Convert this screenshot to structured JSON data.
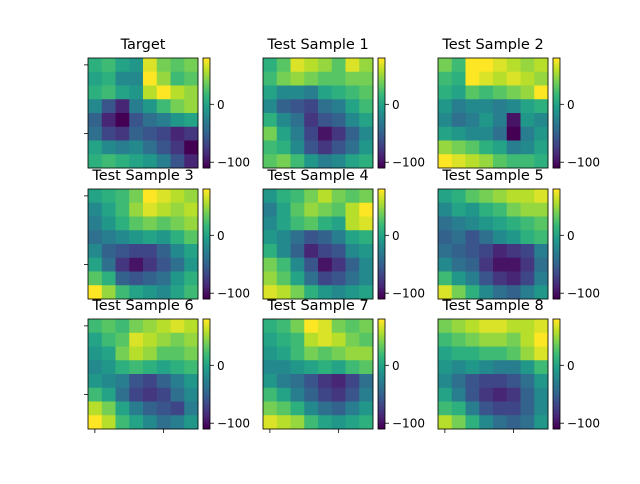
{
  "chart_data": {
    "type": "heatmap",
    "colormap": "viridis",
    "grid_size": 8,
    "colorbar": {
      "vmin": -110,
      "vmax": 80,
      "ticks": [
        {
          "value": 0,
          "label": "0"
        },
        {
          "value": -100,
          "label": "−100"
        }
      ]
    },
    "panels": [
      {
        "title": "Target",
        "z": [
          [
            10,
            20,
            0,
            -10,
            70,
            40,
            30,
            40
          ],
          [
            0,
            10,
            -20,
            -20,
            80,
            50,
            20,
            30
          ],
          [
            10,
            20,
            0,
            -10,
            60,
            80,
            60,
            50
          ],
          [
            -20,
            -60,
            -90,
            -30,
            -10,
            20,
            40,
            50
          ],
          [
            -50,
            -90,
            -110,
            -60,
            -40,
            -30,
            -10,
            0
          ],
          [
            -40,
            -70,
            -80,
            -50,
            -60,
            -70,
            -90,
            -80
          ],
          [
            0,
            -20,
            -30,
            -20,
            -40,
            -60,
            -80,
            -110
          ],
          [
            10,
            20,
            10,
            0,
            -10,
            -30,
            -60,
            -90
          ]
        ]
      },
      {
        "title": "Test Sample 1",
        "z": [
          [
            10,
            30,
            70,
            60,
            50,
            30,
            70,
            50
          ],
          [
            20,
            40,
            50,
            40,
            30,
            30,
            40,
            40
          ],
          [
            0,
            -20,
            -20,
            -30,
            0,
            10,
            20,
            30
          ],
          [
            -20,
            -50,
            -60,
            -70,
            -40,
            -30,
            0,
            20
          ],
          [
            10,
            -20,
            -40,
            -80,
            -60,
            -50,
            -20,
            0
          ],
          [
            40,
            0,
            -30,
            -70,
            -100,
            -80,
            -50,
            -20
          ],
          [
            20,
            10,
            -20,
            -60,
            -80,
            -60,
            -40,
            -10
          ],
          [
            30,
            40,
            20,
            -10,
            -30,
            -20,
            0,
            10
          ]
        ]
      },
      {
        "title": "Test Sample 2",
        "z": [
          [
            40,
            20,
            80,
            80,
            70,
            60,
            50,
            60
          ],
          [
            20,
            10,
            80,
            70,
            60,
            70,
            60,
            50
          ],
          [
            10,
            0,
            30,
            20,
            30,
            40,
            50,
            80
          ],
          [
            -10,
            -30,
            -20,
            -20,
            -30,
            -20,
            0,
            10
          ],
          [
            -20,
            -40,
            -30,
            -10,
            -30,
            -100,
            -10,
            -20
          ],
          [
            0,
            -10,
            -20,
            -20,
            -40,
            -110,
            -30,
            -10
          ],
          [
            50,
            40,
            30,
            10,
            0,
            -30,
            -20,
            0
          ],
          [
            80,
            70,
            60,
            50,
            30,
            20,
            20,
            10
          ]
        ]
      },
      {
        "title": "Test Sample 3",
        "z": [
          [
            0,
            10,
            20,
            40,
            80,
            70,
            60,
            50
          ],
          [
            -20,
            0,
            20,
            50,
            70,
            60,
            50,
            60
          ],
          [
            -30,
            -10,
            10,
            30,
            40,
            30,
            40,
            50
          ],
          [
            -40,
            -30,
            -20,
            -10,
            0,
            -10,
            10,
            30
          ],
          [
            -20,
            -50,
            -60,
            -70,
            -70,
            -50,
            -20,
            0
          ],
          [
            0,
            -40,
            -80,
            -100,
            -80,
            -60,
            -40,
            -10
          ],
          [
            30,
            10,
            -50,
            -60,
            -50,
            -40,
            -10,
            10
          ],
          [
            80,
            50,
            20,
            0,
            -10,
            -20,
            0,
            20
          ]
        ]
      },
      {
        "title": "Test Sample 4",
        "z": [
          [
            -10,
            10,
            20,
            40,
            60,
            40,
            30,
            40
          ],
          [
            -30,
            0,
            30,
            50,
            40,
            30,
            60,
            80
          ],
          [
            -20,
            0,
            20,
            30,
            10,
            0,
            60,
            70
          ],
          [
            -10,
            -20,
            -40,
            -60,
            -50,
            -30,
            0,
            10
          ],
          [
            10,
            -20,
            -50,
            -90,
            -70,
            -60,
            -20,
            -10
          ],
          [
            40,
            20,
            -20,
            -60,
            -100,
            -80,
            -50,
            -20
          ],
          [
            50,
            30,
            0,
            -40,
            -70,
            -60,
            -40,
            -20
          ],
          [
            70,
            60,
            40,
            10,
            -10,
            -20,
            -10,
            0
          ]
        ]
      },
      {
        "title": "Test Sample 5",
        "z": [
          [
            0,
            10,
            30,
            40,
            50,
            60,
            60,
            70
          ],
          [
            -20,
            0,
            -10,
            10,
            20,
            40,
            50,
            50
          ],
          [
            -40,
            -30,
            -20,
            -10,
            0,
            10,
            20,
            30
          ],
          [
            -50,
            -40,
            -60,
            -40,
            -20,
            -10,
            10,
            20
          ],
          [
            -40,
            -50,
            -60,
            -70,
            -90,
            -80,
            -70,
            -30
          ],
          [
            -20,
            -40,
            -50,
            -80,
            -100,
            -100,
            -80,
            -40
          ],
          [
            20,
            -10,
            -30,
            -60,
            -80,
            -90,
            -70,
            -30
          ],
          [
            70,
            40,
            10,
            -20,
            -40,
            -50,
            -30,
            -10
          ]
        ]
      },
      {
        "title": "Test Sample 6",
        "z": [
          [
            20,
            30,
            20,
            40,
            50,
            60,
            70,
            60
          ],
          [
            0,
            20,
            30,
            70,
            60,
            50,
            40,
            50
          ],
          [
            -10,
            0,
            40,
            60,
            50,
            30,
            30,
            40
          ],
          [
            -20,
            -10,
            10,
            20,
            10,
            0,
            10,
            20
          ],
          [
            -10,
            -20,
            -30,
            -60,
            -70,
            -50,
            -30,
            -10
          ],
          [
            20,
            0,
            -40,
            -70,
            -80,
            -70,
            -40,
            -20
          ],
          [
            60,
            40,
            0,
            -30,
            -50,
            -60,
            -70,
            -30
          ],
          [
            80,
            60,
            20,
            0,
            -20,
            -40,
            -30,
            -10
          ]
        ]
      },
      {
        "title": "Test Sample 7",
        "z": [
          [
            10,
            20,
            40,
            80,
            70,
            40,
            30,
            40
          ],
          [
            0,
            10,
            20,
            60,
            70,
            60,
            40,
            30
          ],
          [
            -10,
            0,
            20,
            40,
            30,
            40,
            50,
            50
          ],
          [
            -20,
            -20,
            -10,
            0,
            10,
            0,
            20,
            30
          ],
          [
            -10,
            -30,
            -40,
            -60,
            -80,
            -90,
            -70,
            -40
          ],
          [
            20,
            0,
            -30,
            -50,
            -70,
            -80,
            -60,
            -30
          ],
          [
            40,
            30,
            10,
            -20,
            -40,
            -50,
            -30,
            -10
          ],
          [
            70,
            60,
            50,
            20,
            0,
            -10,
            0,
            10
          ]
        ]
      },
      {
        "title": "Test Sample 8",
        "z": [
          [
            40,
            50,
            60,
            70,
            70,
            60,
            60,
            70
          ],
          [
            20,
            30,
            40,
            50,
            50,
            40,
            60,
            80
          ],
          [
            0,
            10,
            10,
            20,
            20,
            30,
            50,
            70
          ],
          [
            -10,
            -20,
            -10,
            -20,
            -30,
            -30,
            -10,
            20
          ],
          [
            -20,
            -40,
            -60,
            -70,
            -70,
            -60,
            -40,
            -10
          ],
          [
            0,
            -30,
            -60,
            -80,
            -90,
            -80,
            -50,
            -20
          ],
          [
            20,
            10,
            -30,
            -60,
            -70,
            -70,
            -50,
            -20
          ],
          [
            60,
            40,
            10,
            -20,
            -40,
            -50,
            -40,
            -10
          ]
        ]
      }
    ]
  }
}
